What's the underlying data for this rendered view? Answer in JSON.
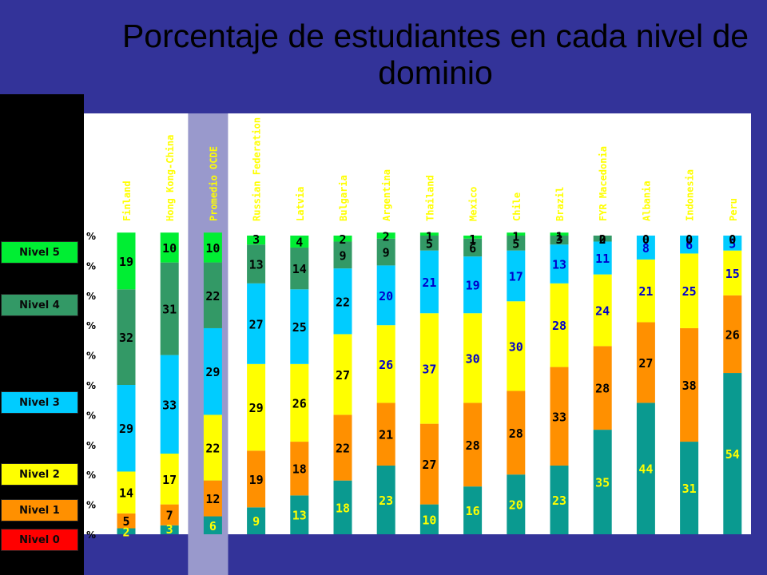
{
  "title": "Porcentaje de estudiantes en cada nivel de dominio",
  "colors": {
    "Nivel 0": "#0a9a90",
    "Nivel 1": "#ff9000",
    "Nivel 2": "#ffff00",
    "Nivel 3": "#00ccff",
    "Nivel 4": "#339966",
    "Nivel 5": "#00ee33"
  },
  "legend": [
    {
      "label": "Nivel 5",
      "color": "#00ee33"
    },
    {
      "label": "Nivel 4",
      "color": "#339966"
    },
    {
      "label": "Nivel 3",
      "color": "#00ccff"
    },
    {
      "label": "Nivel 2",
      "color": "#ffff00"
    },
    {
      "label": "Nivel 1",
      "color": "#ff9000"
    },
    {
      "label": "Nivel 0",
      "color": "#ff0000"
    }
  ],
  "chart_data": {
    "type": "bar",
    "stacked": true,
    "title": "Porcentaje de estudiantes en cada nivel de dominio",
    "y_tick_labels": [
      "%",
      "%",
      "%",
      "%",
      "%",
      "%",
      "%",
      "%",
      "%",
      "%",
      "%"
    ],
    "ylim": [
      0,
      100
    ],
    "highlighted_category": "Promedio OCDE",
    "categories": [
      "Finland",
      "Hong Kong-China",
      "Promedio OCDE",
      "Russian Federation",
      "Latvia",
      "Bulgaria",
      "Argentina",
      "Thailand",
      "Mexico",
      "Chile",
      "Brazil",
      "FYR Macedonia",
      "Albania",
      "Indonesia",
      "Peru"
    ],
    "series": [
      {
        "name": "Nivel 0",
        "values": [
          2,
          3,
          6,
          9,
          13,
          18,
          23,
          10,
          16,
          20,
          23,
          35,
          44,
          31,
          54
        ]
      },
      {
        "name": "Nivel 1",
        "values": [
          5,
          7,
          12,
          19,
          18,
          22,
          21,
          27,
          28,
          28,
          33,
          28,
          27,
          38,
          26
        ]
      },
      {
        "name": "Nivel 2",
        "values": [
          14,
          17,
          22,
          29,
          26,
          27,
          26,
          37,
          30,
          30,
          28,
          24,
          21,
          25,
          15
        ]
      },
      {
        "name": "Nivel 3",
        "values": [
          29,
          33,
          29,
          27,
          25,
          22,
          20,
          21,
          19,
          17,
          13,
          11,
          8,
          6,
          5
        ]
      },
      {
        "name": "Nivel 4",
        "values": [
          32,
          31,
          22,
          13,
          14,
          9,
          9,
          5,
          6,
          5,
          3,
          2,
          0,
          0,
          0
        ]
      },
      {
        "name": "Nivel 5",
        "values": [
          19,
          10,
          10,
          3,
          4,
          2,
          2,
          1,
          1,
          1,
          1,
          0,
          0,
          0,
          0
        ]
      }
    ]
  }
}
